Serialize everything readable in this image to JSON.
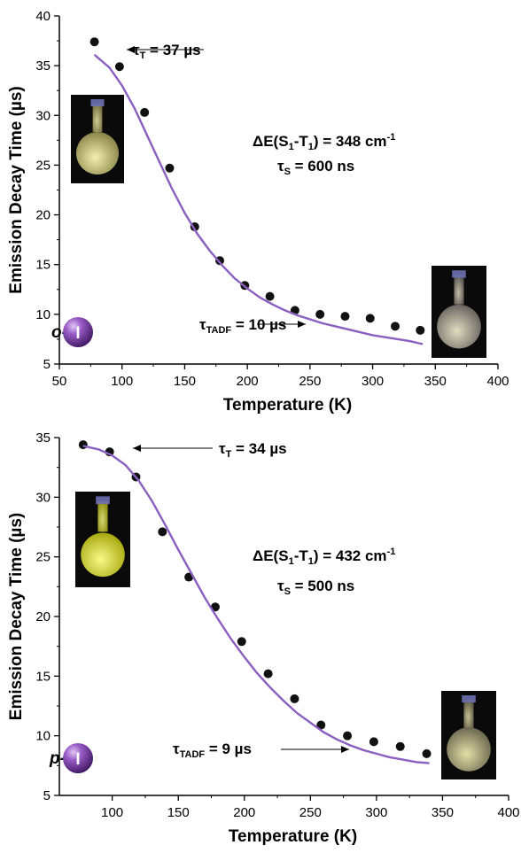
{
  "chart_data": [
    {
      "type": "scatter",
      "panel_id": "top",
      "xlabel": "Temperature (K)",
      "ylabel": "Emission Decay Time (µs)",
      "xlim": [
        50,
        400
      ],
      "ylim": [
        5,
        40
      ],
      "xticks": [
        50,
        100,
        150,
        200,
        250,
        300,
        350,
        400
      ],
      "yticks": [
        5,
        10,
        15,
        20,
        25,
        30,
        35,
        40
      ],
      "series": [
        {
          "kind": "points",
          "color": "#111111",
          "x": [
            78,
            98,
            118,
            138,
            158,
            178,
            198,
            218,
            238,
            258,
            278,
            298,
            318,
            338
          ],
          "y": [
            37.4,
            34.9,
            30.3,
            24.7,
            18.8,
            15.4,
            12.9,
            11.8,
            10.4,
            10.0,
            9.8,
            9.6,
            8.8,
            8.4
          ]
        },
        {
          "kind": "fit",
          "color": "#8a5fc0",
          "x": [
            78,
            90,
            100,
            110,
            120,
            130,
            140,
            150,
            160,
            170,
            180,
            190,
            200,
            210,
            220,
            230,
            240,
            250,
            260,
            270,
            280,
            290,
            300,
            310,
            320,
            330,
            340
          ],
          "y": [
            36.1,
            34.8,
            33.0,
            30.7,
            28.0,
            25.3,
            22.6,
            20.2,
            18.1,
            16.4,
            14.9,
            13.6,
            12.6,
            11.7,
            11.0,
            10.4,
            9.9,
            9.5,
            9.1,
            8.8,
            8.5,
            8.2,
            7.9,
            7.7,
            7.5,
            7.3,
            7.0
          ]
        }
      ],
      "annotations": {
        "tau_t": {
          "prefix": "τ",
          "sub": "T",
          "suffix": " = 37 µs"
        },
        "delta_e": {
          "prefix": "ΔE(S",
          "sub1": "1",
          "mid": "-T",
          "sub2": "1",
          "suffix": ") = 348 cm",
          "sup": "-1"
        },
        "tau_s": {
          "prefix": "τ",
          "sub": "S",
          "suffix": " = 600 ns"
        },
        "tau_tadf": {
          "prefix": "τ",
          "sub": "TADF",
          "suffix": " = 10 µs"
        },
        "isomer_prefix": "o-",
        "sphere_label": "I",
        "flask_glow_left": "#d8d070",
        "flask_glow_right": "#b8b490"
      }
    },
    {
      "type": "scatter",
      "panel_id": "bottom",
      "xlabel": "Temperature (K)",
      "ylabel": "Emission Decay Time (µs)",
      "xlim": [
        60,
        400
      ],
      "ylim": [
        5,
        35
      ],
      "xticks": [
        100,
        150,
        200,
        250,
        300,
        350,
        400
      ],
      "yticks": [
        5,
        10,
        15,
        20,
        25,
        30,
        35
      ],
      "series": [
        {
          "kind": "points",
          "color": "#111111",
          "x": [
            78,
            98,
            118,
            138,
            158,
            178,
            198,
            218,
            238,
            258,
            278,
            298,
            318,
            338
          ],
          "y": [
            34.4,
            33.8,
            31.7,
            27.1,
            23.3,
            20.8,
            17.9,
            15.2,
            13.1,
            10.9,
            10.0,
            9.5,
            9.1,
            8.5
          ]
        },
        {
          "kind": "fit",
          "color": "#8a5fc0",
          "x": [
            78,
            90,
            100,
            110,
            120,
            130,
            140,
            150,
            160,
            170,
            180,
            190,
            200,
            210,
            220,
            230,
            240,
            250,
            260,
            270,
            280,
            290,
            300,
            310,
            320,
            330,
            340
          ],
          "y": [
            34.3,
            34.0,
            33.5,
            32.7,
            31.4,
            29.7,
            27.7,
            25.6,
            23.6,
            21.6,
            19.8,
            18.1,
            16.6,
            15.2,
            14.0,
            12.9,
            11.9,
            11.1,
            10.3,
            9.7,
            9.2,
            8.8,
            8.5,
            8.2,
            8.0,
            7.8,
            7.7
          ]
        }
      ],
      "annotations": {
        "tau_t": {
          "prefix": "τ",
          "sub": "T",
          "suffix": " = 34 µs"
        },
        "delta_e": {
          "prefix": "ΔE(S",
          "sub1": "1",
          "mid": "-T",
          "sub2": "1",
          "suffix": ") = 432 cm",
          "sup": "-1"
        },
        "tau_s": {
          "prefix": "τ",
          "sub": "S",
          "suffix": " = 500 ns"
        },
        "tau_tadf": {
          "prefix": "τ",
          "sub": "TADF",
          "suffix": " = 9 µs"
        },
        "isomer_prefix": "p-",
        "sphere_label": "I",
        "flask_glow_left": "#e8ea40",
        "flask_glow_right": "#bcb880"
      }
    }
  ]
}
